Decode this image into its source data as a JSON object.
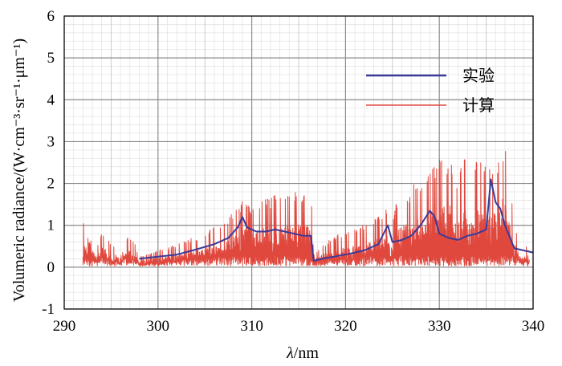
{
  "chart_data": {
    "type": "line",
    "title": "",
    "xlabel_italic": "λ",
    "xlabel_rest": "/nm",
    "ylabel": "Volumeric radiance/(W·cm⁻³·sr⁻¹·μm⁻¹)",
    "xlim": [
      290,
      340
    ],
    "ylim": [
      -1,
      6
    ],
    "xticks": [
      "290",
      "300",
      "310",
      "320",
      "330",
      "340"
    ],
    "yticks": [
      "-1",
      "0",
      "1",
      "2",
      "3",
      "4",
      "5",
      "6"
    ],
    "grid": true,
    "minor_grid": true,
    "legend_position": "top-right",
    "series": [
      {
        "name": "实验",
        "color": "#3a3a9a",
        "x": [
          298.0,
          300.0,
          302.0,
          304.0,
          306.0,
          307.5,
          308.5,
          309.0,
          309.5,
          310.5,
          311.5,
          312.5,
          313.5,
          314.5,
          315.5,
          316.3,
          316.6,
          317.5,
          320.0,
          322.0,
          323.5,
          324.5,
          325.0,
          326.0,
          327.0,
          328.0,
          329.0,
          329.5,
          330.0,
          331.0,
          332.0,
          333.0,
          334.0,
          335.0,
          335.5,
          336.0,
          336.5,
          337.0,
          338.0,
          339.0,
          340.0
        ],
        "y": [
          0.2,
          0.25,
          0.3,
          0.42,
          0.55,
          0.7,
          0.95,
          1.2,
          0.95,
          0.85,
          0.85,
          0.9,
          0.85,
          0.8,
          0.75,
          0.75,
          0.15,
          0.2,
          0.3,
          0.4,
          0.55,
          1.0,
          0.6,
          0.65,
          0.75,
          1.0,
          1.35,
          1.2,
          0.8,
          0.7,
          0.65,
          0.75,
          0.8,
          0.9,
          2.1,
          1.55,
          1.4,
          1.0,
          0.45,
          0.4,
          0.35
        ]
      },
      {
        "name": "计算",
        "color": "#e0483e",
        "x": [
          292.0,
          292.4,
          292.6,
          293.0,
          293.6,
          294.1,
          294.6,
          295.1,
          295.6,
          295.9,
          296.4,
          296.9,
          297.5,
          298.0,
          298.9,
          299.9,
          300.9,
          301.9,
          302.9,
          303.9,
          304.9,
          305.9,
          306.9,
          307.6,
          308.3,
          308.9,
          309.3,
          309.9,
          310.4,
          310.9,
          311.4,
          311.9,
          312.4,
          312.9,
          313.4,
          313.9,
          314.4,
          314.9,
          315.4,
          315.9,
          316.3,
          316.6,
          317.4,
          318.4,
          319.4,
          320.4,
          321.4,
          322.4,
          323.4,
          323.9,
          324.4,
          324.9,
          325.4,
          325.9,
          326.4,
          326.9,
          327.4,
          327.9,
          328.4,
          328.9,
          329.4,
          329.9,
          330.4,
          330.7,
          331.1,
          331.7,
          332.1,
          332.6,
          333.1,
          333.6,
          334.1,
          334.6,
          335.1,
          335.5,
          335.9,
          336.3,
          336.7,
          337.1,
          337.5,
          337.9,
          338.5,
          339.1,
          339.6
        ],
        "y": [
          1.2,
          0.9,
          0.6,
          0.7,
          0.6,
          0.85,
          0.7,
          0.5,
          0.65,
          0.4,
          0.8,
          0.7,
          0.6,
          0.25,
          0.3,
          0.4,
          0.45,
          0.55,
          0.65,
          0.7,
          0.8,
          0.95,
          1.1,
          1.2,
          1.4,
          1.55,
          1.7,
          1.45,
          1.6,
          1.55,
          1.7,
          1.6,
          1.75,
          1.8,
          1.65,
          1.85,
          1.75,
          1.9,
          1.8,
          1.85,
          1.9,
          0.3,
          0.5,
          0.7,
          0.8,
          0.9,
          1.0,
          1.1,
          1.2,
          1.3,
          1.45,
          1.1,
          1.55,
          1.7,
          1.9,
          1.65,
          2.1,
          2.0,
          2.2,
          2.35,
          2.4,
          2.6,
          2.85,
          2.2,
          2.7,
          1.9,
          2.2,
          2.75,
          2.1,
          2.4,
          2.6,
          2.85,
          2.2,
          2.75,
          2.4,
          2.5,
          3.0,
          2.8,
          2.1,
          1.2,
          0.6,
          0.5,
          0.55
        ]
      }
    ]
  }
}
